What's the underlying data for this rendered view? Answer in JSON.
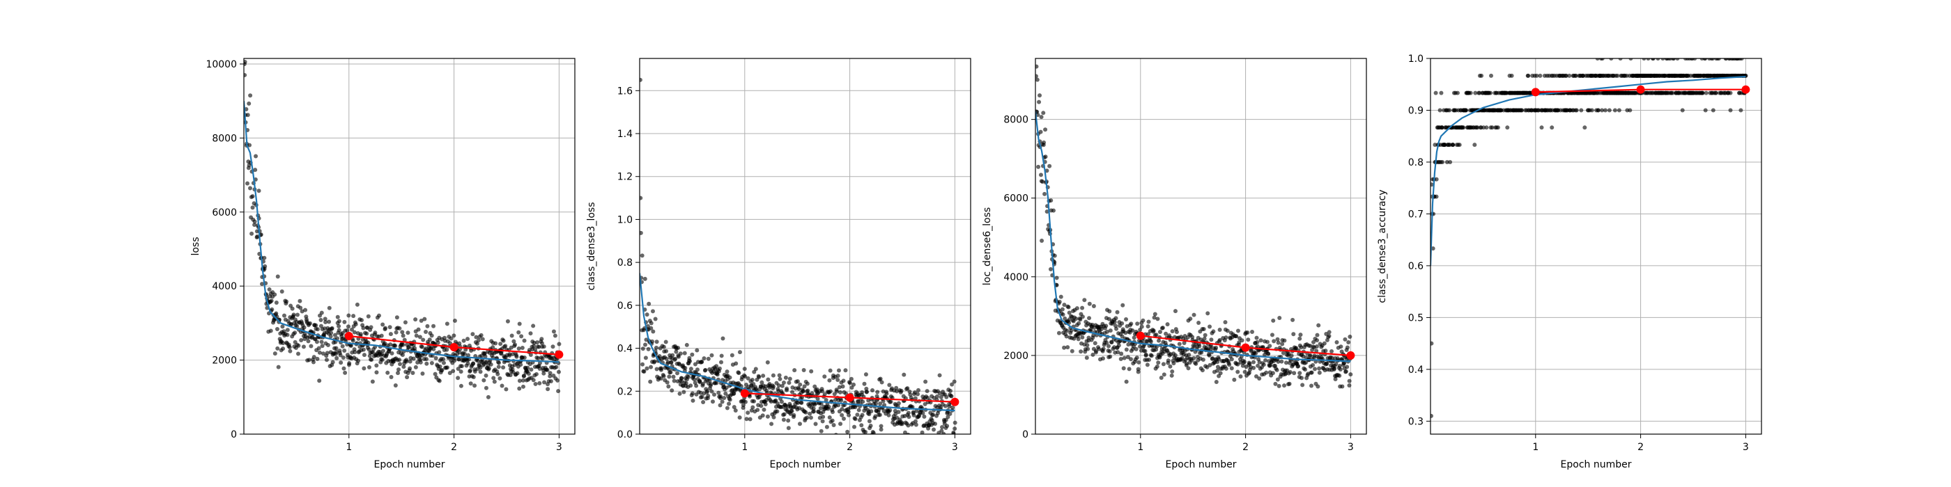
{
  "chart_data": [
    {
      "type": "scatter",
      "title": "",
      "xlabel": "Epoch number",
      "ylabel": "loss",
      "xlim": [
        0,
        3.15
      ],
      "ylim": [
        0,
        10150
      ],
      "xticks": [
        1,
        2,
        3
      ],
      "yticks": [
        0,
        2000,
        4000,
        6000,
        8000,
        10000
      ],
      "grid": true,
      "points": {
        "start": 9700,
        "peak_start": 10000,
        "knee_x": 0.25,
        "knee_y": 3400,
        "end": 1950,
        "spread": 650
      },
      "smoothed": {
        "x": [
          0.0,
          0.03,
          0.06,
          0.09,
          0.12,
          0.15,
          0.18,
          0.21,
          0.25,
          0.35,
          0.5,
          0.75,
          1.0,
          1.25,
          1.5,
          1.75,
          2.0,
          2.25,
          2.5,
          2.75,
          3.0
        ],
        "y": [
          9000,
          7800,
          7600,
          7000,
          6300,
          5300,
          4400,
          3700,
          3300,
          3000,
          2850,
          2620,
          2450,
          2400,
          2280,
          2180,
          2100,
          2050,
          2000,
          1980,
          1950
        ]
      },
      "epoch_values": {
        "x": [
          1,
          2,
          3
        ],
        "y": [
          2650,
          2350,
          2150
        ]
      }
    },
    {
      "type": "scatter",
      "title": "",
      "xlabel": "Epoch number",
      "ylabel": "class_dense3_loss",
      "xlim": [
        0,
        3.15
      ],
      "ylim": [
        0,
        1.75
      ],
      "xticks": [
        1,
        2,
        3
      ],
      "yticks": [
        0.0,
        0.2,
        0.4,
        0.6,
        0.8,
        1.0,
        1.2,
        1.4,
        1.6
      ],
      "grid": true,
      "points": {
        "start": 1.1,
        "peak_start": 1.65,
        "knee_x": 0.2,
        "knee_y": 0.38,
        "end": 0.11,
        "spread": 0.11
      },
      "smoothed": {
        "x": [
          0.0,
          0.04,
          0.08,
          0.12,
          0.16,
          0.2,
          0.3,
          0.4,
          0.6,
          0.8,
          1.0,
          1.25,
          1.5,
          1.75,
          2.0,
          2.25,
          2.5,
          2.75,
          3.0
        ],
        "y": [
          0.75,
          0.55,
          0.45,
          0.4,
          0.36,
          0.33,
          0.31,
          0.29,
          0.27,
          0.24,
          0.21,
          0.18,
          0.16,
          0.15,
          0.14,
          0.13,
          0.12,
          0.115,
          0.11
        ]
      },
      "epoch_values": {
        "x": [
          1,
          2,
          3
        ],
        "y": [
          0.19,
          0.17,
          0.15
        ]
      }
    },
    {
      "type": "scatter",
      "title": "",
      "xlabel": "Epoch number",
      "ylabel": "loc_dense6_loss",
      "xlim": [
        0,
        3.15
      ],
      "ylim": [
        0,
        9550
      ],
      "xticks": [
        1,
        2,
        3
      ],
      "yticks": [
        0,
        2000,
        4000,
        6000,
        8000
      ],
      "grid": true,
      "points": {
        "start": 8200,
        "peak_start": 9100,
        "knee_x": 0.25,
        "knee_y": 3000,
        "end": 1850,
        "spread": 600
      },
      "smoothed": {
        "x": [
          0.0,
          0.03,
          0.06,
          0.09,
          0.12,
          0.15,
          0.18,
          0.21,
          0.25,
          0.35,
          0.5,
          0.75,
          1.0,
          1.25,
          1.5,
          1.75,
          2.0,
          2.25,
          2.5,
          2.75,
          3.0
        ],
        "y": [
          8200,
          7500,
          7200,
          6700,
          6000,
          4900,
          3900,
          3200,
          2900,
          2700,
          2600,
          2450,
          2300,
          2250,
          2150,
          2080,
          2000,
          1950,
          1900,
          1880,
          1850
        ]
      },
      "epoch_values": {
        "x": [
          1,
          2,
          3
        ],
        "y": [
          2500,
          2200,
          2000
        ]
      }
    },
    {
      "type": "scatter",
      "title": "",
      "xlabel": "Epoch number",
      "ylabel": "class_dense3_accuracy",
      "xlim": [
        0,
        3.15
      ],
      "ylim": [
        0.275,
        1.0
      ],
      "xticks": [
        1,
        2,
        3
      ],
      "yticks": [
        0.3,
        0.4,
        0.5,
        0.6,
        0.7,
        0.8,
        0.9,
        1.0
      ],
      "grid": true,
      "points": {
        "start": 0.45,
        "peak_start": 0.31,
        "knee_x": 0.15,
        "knee_y": 0.86,
        "end": 0.97,
        "spread": 0.04
      },
      "smoothed": {
        "x": [
          0.0,
          0.02,
          0.04,
          0.06,
          0.08,
          0.1,
          0.15,
          0.2,
          0.3,
          0.4,
          0.5,
          0.75,
          1.0,
          1.25,
          1.5,
          1.75,
          2.0,
          2.25,
          2.5,
          2.75,
          3.0
        ],
        "y": [
          0.6,
          0.72,
          0.78,
          0.82,
          0.84,
          0.85,
          0.86,
          0.87,
          0.885,
          0.895,
          0.905,
          0.92,
          0.93,
          0.935,
          0.94,
          0.945,
          0.95,
          0.955,
          0.958,
          0.962,
          0.965
        ]
      },
      "epoch_values": {
        "x": [
          1,
          2,
          3
        ],
        "y": [
          0.935,
          0.94,
          0.94
        ]
      }
    }
  ],
  "colors": {
    "points": "#000000",
    "smoothed": "#1f77b4",
    "epoch": "#ff0000",
    "grid": "#b0b0b0"
  }
}
